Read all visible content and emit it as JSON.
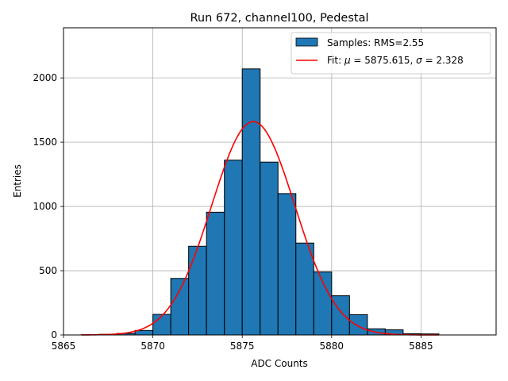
{
  "chart_data": {
    "type": "bar",
    "title": "Run 672, channel100, Pedestal",
    "xlabel": "ADC Counts",
    "ylabel": "Entries",
    "xlim": [
      5865,
      5889.2
    ],
    "ylim": [
      0,
      2390
    ],
    "xticks": [
      5865,
      5870,
      5875,
      5880,
      5885
    ],
    "yticks": [
      0,
      500,
      1000,
      1500,
      2000
    ],
    "grid": true,
    "legend": "top-right",
    "bin_width": 1,
    "bins": [
      {
        "left": 5866,
        "value": 2
      },
      {
        "left": 5867,
        "value": 5
      },
      {
        "left": 5868,
        "value": 12
      },
      {
        "left": 5869,
        "value": 35
      },
      {
        "left": 5870,
        "value": 160
      },
      {
        "left": 5871,
        "value": 440
      },
      {
        "left": 5872,
        "value": 690
      },
      {
        "left": 5873,
        "value": 955
      },
      {
        "left": 5874,
        "value": 1360
      },
      {
        "left": 5875,
        "value": 2070
      },
      {
        "left": 5876,
        "value": 1345
      },
      {
        "left": 5877,
        "value": 1100
      },
      {
        "left": 5878,
        "value": 715
      },
      {
        "left": 5879,
        "value": 490
      },
      {
        "left": 5880,
        "value": 305
      },
      {
        "left": 5881,
        "value": 158
      },
      {
        "left": 5882,
        "value": 48
      },
      {
        "left": 5883,
        "value": 40
      },
      {
        "left": 5884,
        "value": 10
      },
      {
        "left": 5885,
        "value": 8
      }
    ],
    "fit": {
      "mu": 5875.615,
      "sigma": 2.328,
      "amplitude": 1660,
      "x_from": 5866,
      "x_to": 5886
    },
    "series": [
      {
        "name": "Samples: RMS=2.55",
        "kind": "histogram",
        "color": "#1f77b4"
      },
      {
        "name": "Fit: μ = 5875.615, σ = 2.328",
        "kind": "line",
        "color": "#ff0000"
      }
    ],
    "legend_entries": [
      {
        "label": "Samples: RMS=2.55"
      },
      {
        "label_prefix": "Fit: ",
        "mu_symbol": "μ",
        "mu_text": " = 5875.615, ",
        "sigma_symbol": "σ",
        "sigma_text": " = 2.328"
      }
    ],
    "colors": {
      "bar": "#1f77b4",
      "fit": "#ff0000",
      "grid": "#b0b0b0"
    }
  }
}
